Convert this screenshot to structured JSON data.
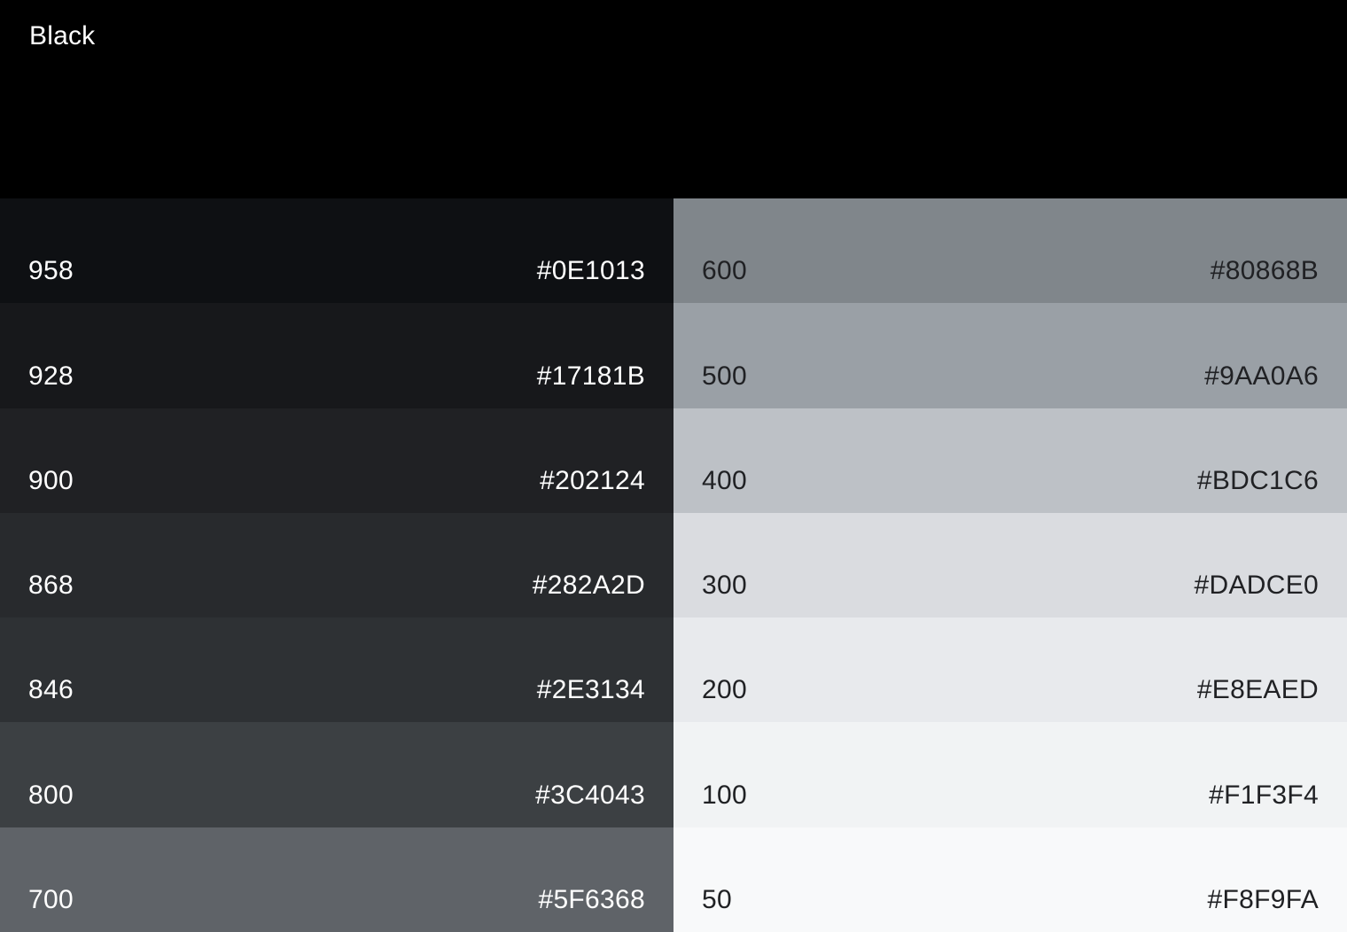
{
  "palette": {
    "name": "Black",
    "header_background": "#000000",
    "header_text_color": "#FFFFFF",
    "columns": [
      {
        "name": "dark-shades",
        "text_color": "#FFFFFF",
        "swatches": [
          {
            "tone": "958",
            "hex": "#0E1013"
          },
          {
            "tone": "928",
            "hex": "#17181B"
          },
          {
            "tone": "900",
            "hex": "#202124"
          },
          {
            "tone": "868",
            "hex": "#282A2D"
          },
          {
            "tone": "846",
            "hex": "#2E3134"
          },
          {
            "tone": "800",
            "hex": "#3C4043"
          },
          {
            "tone": "700",
            "hex": "#5F6368"
          }
        ]
      },
      {
        "name": "light-shades",
        "text_color": "#202124",
        "swatches": [
          {
            "tone": "600",
            "hex": "#80868B"
          },
          {
            "tone": "500",
            "hex": "#9AA0A6"
          },
          {
            "tone": "400",
            "hex": "#BDC1C6"
          },
          {
            "tone": "300",
            "hex": "#DADCE0"
          },
          {
            "tone": "200",
            "hex": "#E8EAED"
          },
          {
            "tone": "100",
            "hex": "#F1F3F4"
          },
          {
            "tone": "50",
            "hex": "#F8F9FA"
          }
        ]
      }
    ]
  }
}
